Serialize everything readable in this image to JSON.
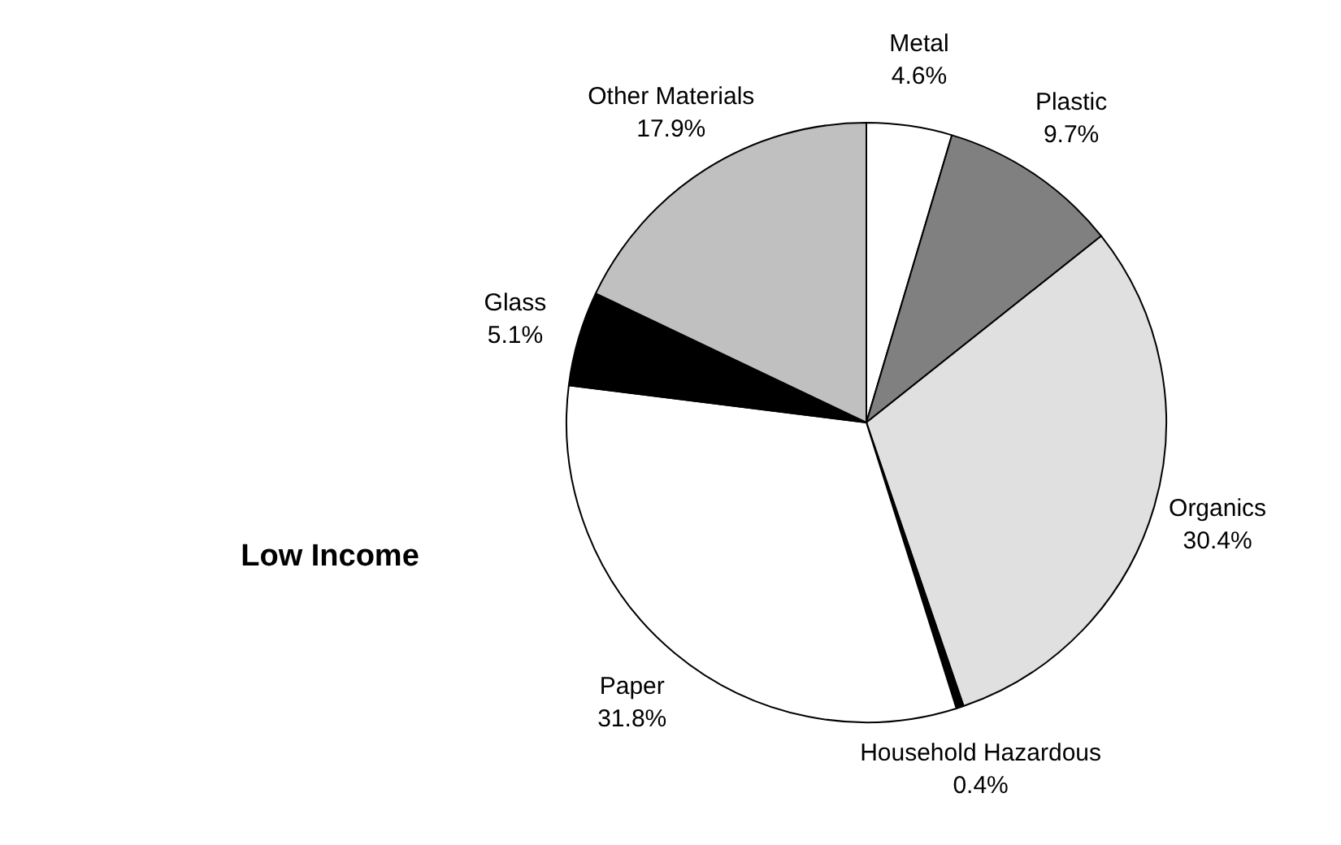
{
  "chart_data": {
    "type": "pie",
    "title": "Low Income",
    "categories": [
      "Metal",
      "Plastic",
      "Organics",
      "Household Hazardous",
      "Paper",
      "Glass",
      "Other Materials"
    ],
    "values": [
      4.6,
      9.7,
      30.4,
      0.4,
      31.8,
      5.1,
      17.9
    ],
    "value_labels": [
      "4.6%",
      "9.7%",
      "30.4%",
      "0.4%",
      "31.8%",
      "5.1%",
      "17.9%"
    ],
    "colors": [
      "#ffffff",
      "#808080",
      "#e0e0e0",
      "#000000",
      "#ffffff",
      "#000000",
      "#c0c0c0"
    ],
    "legend": false
  }
}
